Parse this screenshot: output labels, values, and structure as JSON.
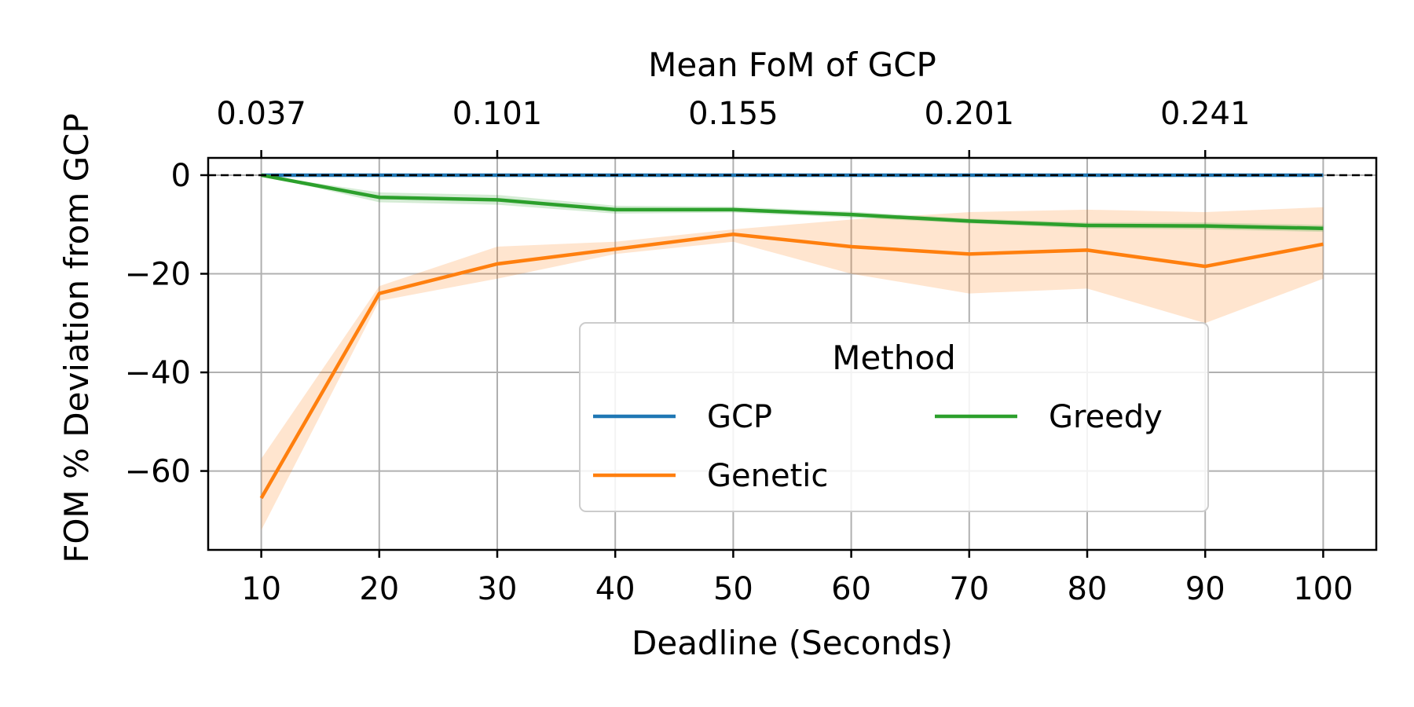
{
  "chart_data": {
    "type": "line",
    "xlabel": "Deadline (Seconds)",
    "ylabel": "FOM % Deviation from GCP",
    "top_xlabel": "Mean FoM of GCP",
    "x": [
      10,
      20,
      30,
      40,
      50,
      60,
      70,
      80,
      90,
      100
    ],
    "xticks": [
      10,
      20,
      30,
      40,
      50,
      60,
      70,
      80,
      90,
      100
    ],
    "xlim": [
      5.5,
      104.5
    ],
    "yticks": [
      0,
      -20,
      -40,
      -60
    ],
    "ytick_labels": [
      "0",
      "−20",
      "−40",
      "−60"
    ],
    "ylim": [
      -76,
      3.5
    ],
    "top_ticks": [
      {
        "x": 10,
        "label": "0.037"
      },
      {
        "x": 30,
        "label": "0.101"
      },
      {
        "x": 50,
        "label": "0.155"
      },
      {
        "x": 70,
        "label": "0.201"
      },
      {
        "x": 90,
        "label": "0.241"
      }
    ],
    "reference_line": {
      "y": 0,
      "style": "dashed",
      "color": "#000000"
    },
    "grid": true,
    "legend": {
      "title": "Method",
      "placement": "center-right",
      "columns": 2
    },
    "series": [
      {
        "name": "GCP",
        "color": "#1f77b4",
        "values": [
          0,
          0,
          0,
          0,
          0,
          0,
          0,
          0,
          0,
          0
        ]
      },
      {
        "name": "Genetic",
        "color": "#ff7f0e",
        "values": [
          -65.5,
          -24,
          -18,
          -15,
          -12,
          -14.5,
          -16,
          -15.2,
          -18.5,
          -14
        ],
        "band_low": [
          -72,
          -25.5,
          -21,
          -16,
          -13.5,
          -20,
          -24,
          -23,
          -30,
          -21
        ],
        "band_high": [
          -57.5,
          -22.5,
          -14.5,
          -13.5,
          -11,
          -9,
          -7.5,
          -7,
          -7.5,
          -6.5
        ]
      },
      {
        "name": "Greedy",
        "color": "#2ca02c",
        "values": [
          0,
          -4.5,
          -5,
          -7,
          -7,
          -8,
          -9.3,
          -10.2,
          -10.3,
          -10.8
        ],
        "band_low": [
          0,
          -5.5,
          -6,
          -7.8,
          -7.6,
          -8.6,
          -9.8,
          -10.8,
          -11,
          -11.5
        ],
        "band_high": [
          0,
          -3.5,
          -4,
          -6.2,
          -6.4,
          -7.4,
          -8.8,
          -9.6,
          -9.6,
          -10.1
        ]
      }
    ]
  }
}
